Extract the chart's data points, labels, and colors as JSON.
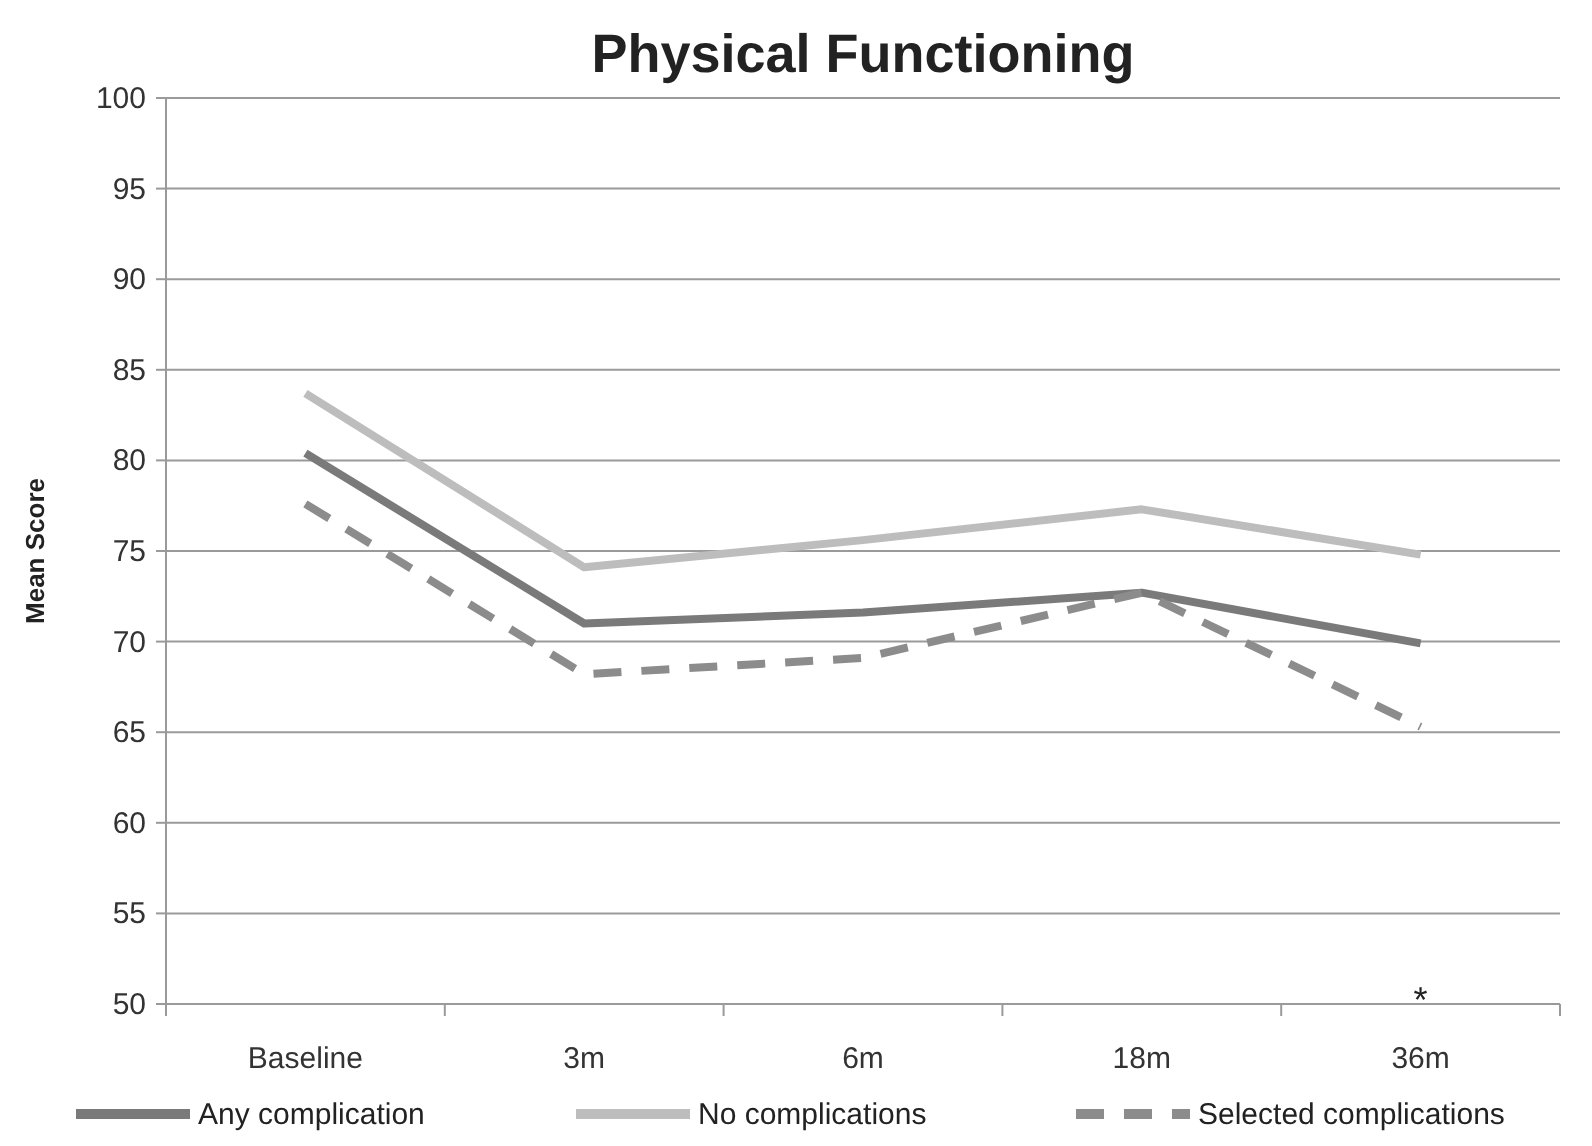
{
  "chart_data": {
    "type": "line",
    "title": "Physical Functioning",
    "ylabel": "Mean Score",
    "categories": [
      "Baseline",
      "3m",
      "6m",
      "18m",
      "36m"
    ],
    "series": [
      {
        "name": "Any complication",
        "color": "#7a7a7a",
        "values": [
          80.4,
          71.0,
          71.6,
          72.7,
          69.9
        ],
        "line_style": "solid"
      },
      {
        "name": "No complications",
        "color": "#bdbdbd",
        "values": [
          83.7,
          74.1,
          75.6,
          77.3,
          74.8
        ],
        "line_style": "solid"
      },
      {
        "name": "Selected complications",
        "color": "#8c8c8c",
        "values": [
          77.6,
          68.2,
          69.1,
          72.7,
          65.3
        ],
        "line_style": "dashed"
      }
    ],
    "ylim": [
      50,
      100
    ],
    "yticks": [
      50,
      55,
      60,
      65,
      70,
      75,
      80,
      85,
      90,
      95,
      100
    ],
    "grid": "y",
    "legend": "bottom",
    "marker": "none",
    "annotations": [
      "*"
    ]
  }
}
